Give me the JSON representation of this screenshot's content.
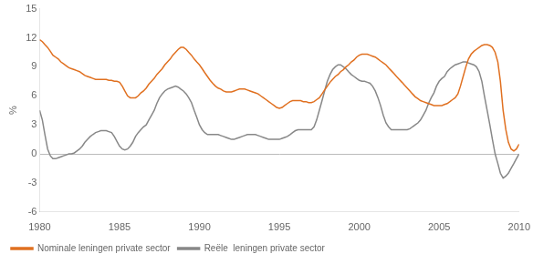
{
  "chart_data": {
    "type": "line",
    "ylabel": "%",
    "xlim": [
      1980,
      2010
    ],
    "ylim": [
      -6,
      15
    ],
    "xticks": [
      1980,
      1985,
      1990,
      1995,
      2000,
      2005,
      2010
    ],
    "yticks": [
      -6,
      -3,
      0,
      3,
      6,
      9,
      12,
      15
    ],
    "grid": false,
    "legend": "bottom",
    "background_color": "#ffffff",
    "x": [
      1980.0,
      1980.17,
      1980.33,
      1980.5,
      1980.67,
      1980.83,
      1981.0,
      1981.17,
      1981.33,
      1981.5,
      1981.67,
      1981.83,
      1982.0,
      1982.17,
      1982.33,
      1982.5,
      1982.67,
      1982.83,
      1983.0,
      1983.17,
      1983.33,
      1983.5,
      1983.67,
      1983.83,
      1984.0,
      1984.17,
      1984.33,
      1984.5,
      1984.67,
      1984.83,
      1985.0,
      1985.17,
      1985.33,
      1985.5,
      1985.67,
      1985.83,
      1986.0,
      1986.17,
      1986.33,
      1986.5,
      1986.67,
      1986.83,
      1987.0,
      1987.17,
      1987.33,
      1987.5,
      1987.67,
      1987.83,
      1988.0,
      1988.17,
      1988.33,
      1988.5,
      1988.67,
      1988.83,
      1989.0,
      1989.17,
      1989.33,
      1989.5,
      1989.67,
      1989.83,
      1990.0,
      1990.17,
      1990.33,
      1990.5,
      1990.67,
      1990.83,
      1991.0,
      1991.17,
      1991.33,
      1991.5,
      1991.67,
      1991.83,
      1992.0,
      1992.17,
      1992.33,
      1992.5,
      1992.67,
      1992.83,
      1993.0,
      1993.17,
      1993.33,
      1993.5,
      1993.67,
      1993.83,
      1994.0,
      1994.17,
      1994.33,
      1994.5,
      1994.67,
      1994.83,
      1995.0,
      1995.17,
      1995.33,
      1995.5,
      1995.67,
      1995.83,
      1996.0,
      1996.17,
      1996.33,
      1996.5,
      1996.67,
      1996.83,
      1997.0,
      1997.17,
      1997.33,
      1997.5,
      1997.67,
      1997.83,
      1998.0,
      1998.17,
      1998.33,
      1998.5,
      1998.67,
      1998.83,
      1999.0,
      1999.17,
      1999.33,
      1999.5,
      1999.67,
      1999.83,
      2000.0,
      2000.17,
      2000.33,
      2000.5,
      2000.67,
      2000.83,
      2001.0,
      2001.17,
      2001.33,
      2001.5,
      2001.67,
      2001.83,
      2002.0,
      2002.17,
      2002.33,
      2002.5,
      2002.67,
      2002.83,
      2003.0,
      2003.17,
      2003.33,
      2003.5,
      2003.67,
      2003.83,
      2004.0,
      2004.17,
      2004.33,
      2004.5,
      2004.67,
      2004.83,
      2005.0,
      2005.17,
      2005.33,
      2005.5,
      2005.67,
      2005.83,
      2006.0,
      2006.17,
      2006.33,
      2006.5,
      2006.67,
      2006.83,
      2007.0,
      2007.17,
      2007.33,
      2007.5,
      2007.67,
      2007.83,
      2008.0,
      2008.17,
      2008.33,
      2008.5,
      2008.67,
      2008.83,
      2009.0,
      2009.17,
      2009.33,
      2009.5,
      2009.67,
      2009.83,
      2010.0
    ],
    "series": [
      {
        "name": "Nominale leningen private sector",
        "color": "#E07020",
        "values": [
          11.8,
          11.6,
          11.3,
          11.0,
          10.6,
          10.2,
          10.0,
          9.8,
          9.5,
          9.3,
          9.1,
          8.9,
          8.8,
          8.7,
          8.6,
          8.5,
          8.3,
          8.1,
          8.0,
          7.9,
          7.8,
          7.7,
          7.7,
          7.7,
          7.7,
          7.7,
          7.6,
          7.6,
          7.5,
          7.5,
          7.4,
          7.0,
          6.5,
          6.0,
          5.8,
          5.8,
          5.8,
          6.0,
          6.3,
          6.5,
          6.8,
          7.2,
          7.5,
          7.8,
          8.2,
          8.5,
          8.8,
          9.2,
          9.5,
          9.8,
          10.2,
          10.5,
          10.8,
          11.0,
          11.0,
          10.8,
          10.5,
          10.2,
          9.8,
          9.5,
          9.2,
          8.8,
          8.4,
          8.0,
          7.6,
          7.3,
          7.0,
          6.8,
          6.7,
          6.5,
          6.4,
          6.4,
          6.4,
          6.5,
          6.6,
          6.7,
          6.7,
          6.7,
          6.6,
          6.5,
          6.4,
          6.3,
          6.2,
          6.0,
          5.8,
          5.6,
          5.4,
          5.2,
          5.0,
          4.8,
          4.7,
          4.8,
          5.0,
          5.2,
          5.4,
          5.5,
          5.5,
          5.5,
          5.5,
          5.4,
          5.4,
          5.3,
          5.3,
          5.4,
          5.6,
          5.8,
          6.2,
          6.6,
          7.0,
          7.4,
          7.7,
          8.0,
          8.2,
          8.5,
          8.7,
          9.0,
          9.2,
          9.5,
          9.7,
          10.0,
          10.2,
          10.3,
          10.3,
          10.3,
          10.2,
          10.1,
          10.0,
          9.8,
          9.6,
          9.4,
          9.2,
          8.9,
          8.6,
          8.3,
          8.0,
          7.7,
          7.4,
          7.1,
          6.8,
          6.5,
          6.2,
          5.9,
          5.7,
          5.5,
          5.4,
          5.3,
          5.2,
          5.1,
          5.0,
          5.0,
          5.0,
          5.0,
          5.1,
          5.2,
          5.4,
          5.6,
          5.8,
          6.2,
          7.0,
          8.0,
          9.0,
          9.8,
          10.3,
          10.6,
          10.8,
          11.0,
          11.2,
          11.3,
          11.3,
          11.2,
          11.0,
          10.5,
          9.5,
          7.5,
          4.5,
          2.5,
          1.2,
          0.5,
          0.3,
          0.5,
          1.0
        ]
      },
      {
        "name": "Reële  leningen private sector",
        "color": "#888888",
        "values": [
          4.5,
          3.5,
          2.0,
          0.5,
          -0.2,
          -0.5,
          -0.5,
          -0.4,
          -0.3,
          -0.2,
          -0.1,
          0.0,
          0.0,
          0.1,
          0.3,
          0.5,
          0.8,
          1.2,
          1.5,
          1.8,
          2.0,
          2.2,
          2.3,
          2.4,
          2.4,
          2.4,
          2.3,
          2.2,
          1.8,
          1.3,
          0.8,
          0.5,
          0.4,
          0.5,
          0.8,
          1.2,
          1.8,
          2.2,
          2.5,
          2.8,
          3.0,
          3.5,
          4.0,
          4.5,
          5.2,
          5.8,
          6.2,
          6.5,
          6.7,
          6.8,
          6.9,
          7.0,
          6.9,
          6.7,
          6.5,
          6.2,
          5.8,
          5.3,
          4.5,
          3.8,
          3.0,
          2.5,
          2.2,
          2.0,
          2.0,
          2.0,
          2.0,
          2.0,
          1.9,
          1.8,
          1.7,
          1.6,
          1.5,
          1.5,
          1.6,
          1.7,
          1.8,
          1.9,
          2.0,
          2.0,
          2.0,
          2.0,
          1.9,
          1.8,
          1.7,
          1.6,
          1.5,
          1.5,
          1.5,
          1.5,
          1.5,
          1.6,
          1.7,
          1.8,
          2.0,
          2.2,
          2.4,
          2.5,
          2.5,
          2.5,
          2.5,
          2.5,
          2.5,
          2.8,
          3.5,
          4.5,
          5.5,
          6.5,
          7.5,
          8.2,
          8.7,
          9.0,
          9.2,
          9.2,
          9.0,
          8.8,
          8.5,
          8.2,
          8.0,
          7.8,
          7.6,
          7.5,
          7.5,
          7.4,
          7.3,
          7.0,
          6.5,
          5.8,
          5.0,
          4.0,
          3.2,
          2.8,
          2.5,
          2.5,
          2.5,
          2.5,
          2.5,
          2.5,
          2.5,
          2.6,
          2.8,
          3.0,
          3.2,
          3.5,
          4.0,
          4.5,
          5.2,
          5.8,
          6.3,
          7.0,
          7.5,
          7.8,
          8.0,
          8.5,
          8.8,
          9.0,
          9.2,
          9.3,
          9.4,
          9.5,
          9.5,
          9.4,
          9.3,
          9.2,
          9.0,
          8.5,
          7.5,
          6.0,
          4.5,
          3.0,
          1.5,
          0.0,
          -1.0,
          -2.0,
          -2.5,
          -2.3,
          -2.0,
          -1.5,
          -1.0,
          -0.5,
          0.0
        ]
      }
    ]
  }
}
